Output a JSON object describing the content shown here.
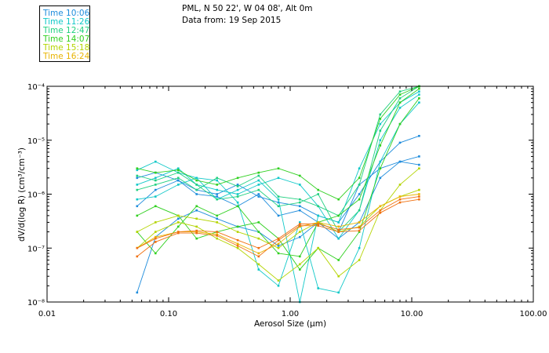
{
  "header": {
    "location": "PML, N 50 22', W 04 08', Alt 0m",
    "date_line": "Data from: 19 Sep 2015"
  },
  "legend": [
    {
      "label": "Time 10:06",
      "color": "#1e8cdc"
    },
    {
      "label": "Time 11:26",
      "color": "#10c8c8"
    },
    {
      "label": "Time 12:47",
      "color": "#20d080"
    },
    {
      "label": "Time 14:07",
      "color": "#30d020"
    },
    {
      "label": "Time 15:18",
      "color": "#b4d400"
    },
    {
      "label": "Time 16:24",
      "color": "#e8b400"
    }
  ],
  "chart_data": {
    "type": "line",
    "xscale": "log",
    "yscale": "log",
    "xlim": [
      0.01,
      100
    ],
    "ylim": [
      1e-08,
      0.0001
    ],
    "xlabel": "Aerosol Size (μm)",
    "ylabel": "dV/d(log R) (cm³/cm⁻³)",
    "x_ticks": [
      {
        "value": 0.01,
        "label": "0.01"
      },
      {
        "value": 0.1,
        "label": "0.10"
      },
      {
        "value": 1,
        "label": "1.00"
      },
      {
        "value": 10,
        "label": "10.00"
      },
      {
        "value": 100,
        "label": "100.00"
      }
    ],
    "y_ticks": [
      {
        "value": 1e-08,
        "label": "10⁻⁸"
      },
      {
        "value": 1e-07,
        "label": "10⁻⁷"
      },
      {
        "value": 1e-06,
        "label": "10⁻⁶"
      },
      {
        "value": 1e-05,
        "label": "10⁻⁵"
      },
      {
        "value": 0.0001,
        "label": "10⁻⁴"
      }
    ],
    "x": [
      0.055,
      0.078,
      0.12,
      0.17,
      0.25,
      0.37,
      0.55,
      0.8,
      1.2,
      1.7,
      2.5,
      3.7,
      5.5,
      8,
      11.5
    ],
    "series": [
      {
        "name": "Time 10:06",
        "color": "#1e8cdc",
        "values": [
          1.5e-08,
          1.6e-07,
          3.5e-07,
          5e-07,
          3.5e-07,
          2.5e-07,
          2e-07,
          1.1e-07,
          1.6e-07,
          3e-07,
          1.5e-07,
          3e-07,
          2e-06,
          4e-06,
          5e-06
        ]
      },
      {
        "name": "Time 10:06",
        "color": "#1e8cdc",
        "values": [
          6e-07,
          1.2e-06,
          1.8e-06,
          1e-06,
          9e-07,
          6e-07,
          1e-06,
          4e-07,
          5e-07,
          3e-07,
          2e-07,
          1.5e-06,
          3e-06,
          4e-06,
          3.5e-06
        ]
      },
      {
        "name": "Time 10:06",
        "color": "#1e8cdc",
        "values": [
          2e-06,
          2.5e-06,
          1.8e-06,
          1.2e-06,
          1e-06,
          1.5e-06,
          9e-07,
          7e-07,
          6e-07,
          4e-07,
          3e-07,
          1e-06,
          4e-06,
          9e-06,
          1.2e-05
        ]
      },
      {
        "name": "Time 11:26",
        "color": "#10c8c8",
        "values": [
          2.8e-06,
          4e-06,
          2.5e-06,
          2e-06,
          8e-07,
          1.2e-06,
          1.8e-06,
          8e-07,
          1e-08,
          4e-07,
          3e-07,
          3e-06,
          2e-05,
          5e-05,
          8e-05
        ]
      },
      {
        "name": "Time 11:26",
        "color": "#10c8c8",
        "values": [
          1.5e-06,
          2e-06,
          3e-06,
          1.5e-06,
          1.2e-06,
          1e-06,
          1.5e-06,
          2e-06,
          1.5e-06,
          6e-07,
          1.5e-07,
          5e-07,
          1e-05,
          4e-05,
          7e-05
        ]
      },
      {
        "name": "Time 11:26",
        "color": "#10c8c8",
        "values": [
          8e-07,
          9e-07,
          1.5e-06,
          2e-06,
          1.8e-06,
          7e-07,
          4e-08,
          2e-08,
          3e-07,
          1.8e-08,
          1.5e-08,
          1e-07,
          4e-06,
          2e-05,
          5e-05
        ]
      },
      {
        "name": "Time 12:47",
        "color": "#20d080",
        "values": [
          2.2e-06,
          1.8e-06,
          2.5e-06,
          1.5e-06,
          8e-07,
          9e-07,
          1.2e-06,
          6e-07,
          7e-07,
          1e-06,
          2e-07,
          5e-07,
          1.5e-05,
          6e-05,
          0.0001
        ]
      },
      {
        "name": "Time 12:47",
        "color": "#20d080",
        "values": [
          1.2e-06,
          1.5e-06,
          2e-06,
          1.2e-06,
          2e-06,
          1.4e-06,
          2.2e-06,
          9e-07,
          8e-07,
          6e-07,
          4e-07,
          1.5e-06,
          3e-05,
          8e-05,
          0.0001
        ]
      },
      {
        "name": "Time 14:07",
        "color": "#30d020",
        "values": [
          3e-06,
          2.5e-06,
          2.8e-06,
          1.8e-06,
          1.5e-06,
          2e-06,
          2.5e-06,
          3e-06,
          2.2e-06,
          1.2e-06,
          8e-07,
          2e-06,
          2.5e-05,
          7e-05,
          0.0001
        ]
      },
      {
        "name": "Time 14:07",
        "color": "#30d020",
        "values": [
          2e-07,
          8e-08,
          2.5e-07,
          6e-07,
          4e-07,
          6e-07,
          2e-07,
          8e-08,
          7e-08,
          3e-07,
          4e-07,
          8e-07,
          8e-06,
          5e-05,
          9e-05
        ]
      },
      {
        "name": "Time 14:07",
        "color": "#30d020",
        "values": [
          4e-07,
          6e-07,
          4e-07,
          1.5e-07,
          2e-07,
          2.5e-07,
          3e-07,
          1.5e-07,
          4e-08,
          1e-07,
          6e-08,
          2e-07,
          3e-06,
          2e-05,
          6e-05
        ]
      },
      {
        "name": "Time 15:18",
        "color": "#b4d400",
        "values": [
          1e-07,
          2e-07,
          3e-07,
          2.5e-07,
          1.5e-07,
          1e-07,
          5e-08,
          2.5e-08,
          5e-08,
          1e-07,
          3e-08,
          6e-08,
          5e-07,
          1.5e-06,
          3e-06
        ]
      },
      {
        "name": "Time 15:18",
        "color": "#b4d400",
        "values": [
          2e-07,
          3e-07,
          4e-07,
          3.5e-07,
          3e-07,
          2e-07,
          1.5e-07,
          1e-07,
          2e-07,
          3e-07,
          2e-07,
          2.5e-07,
          6e-07,
          9e-07,
          1.2e-06
        ]
      },
      {
        "name": "Time 16:24",
        "color": "#e8b400",
        "values": [
          1e-07,
          1.6e-07,
          2e-07,
          2e-07,
          1.8e-07,
          1.2e-07,
          8e-08,
          1.2e-07,
          2.5e-07,
          3e-07,
          2.5e-07,
          3e-07,
          6e-07,
          9e-07,
          1e-06
        ]
      },
      {
        "name": "Time 16:24",
        "color": "#f07010",
        "values": [
          1e-07,
          1.5e-07,
          2e-07,
          2.1e-07,
          2e-07,
          1.4e-07,
          1e-07,
          1.5e-07,
          2.8e-07,
          2.8e-07,
          2.2e-07,
          2.4e-07,
          5e-07,
          8e-07,
          9e-07
        ]
      },
      {
        "name": "Time 16:24",
        "color": "#f07010",
        "values": [
          7e-08,
          1.3e-07,
          1.9e-07,
          1.9e-07,
          1.7e-07,
          1.1e-07,
          7e-08,
          1.4e-07,
          2.6e-07,
          2.6e-07,
          2e-07,
          2.1e-07,
          4.5e-07,
          7e-07,
          8e-07
        ]
      }
    ]
  }
}
